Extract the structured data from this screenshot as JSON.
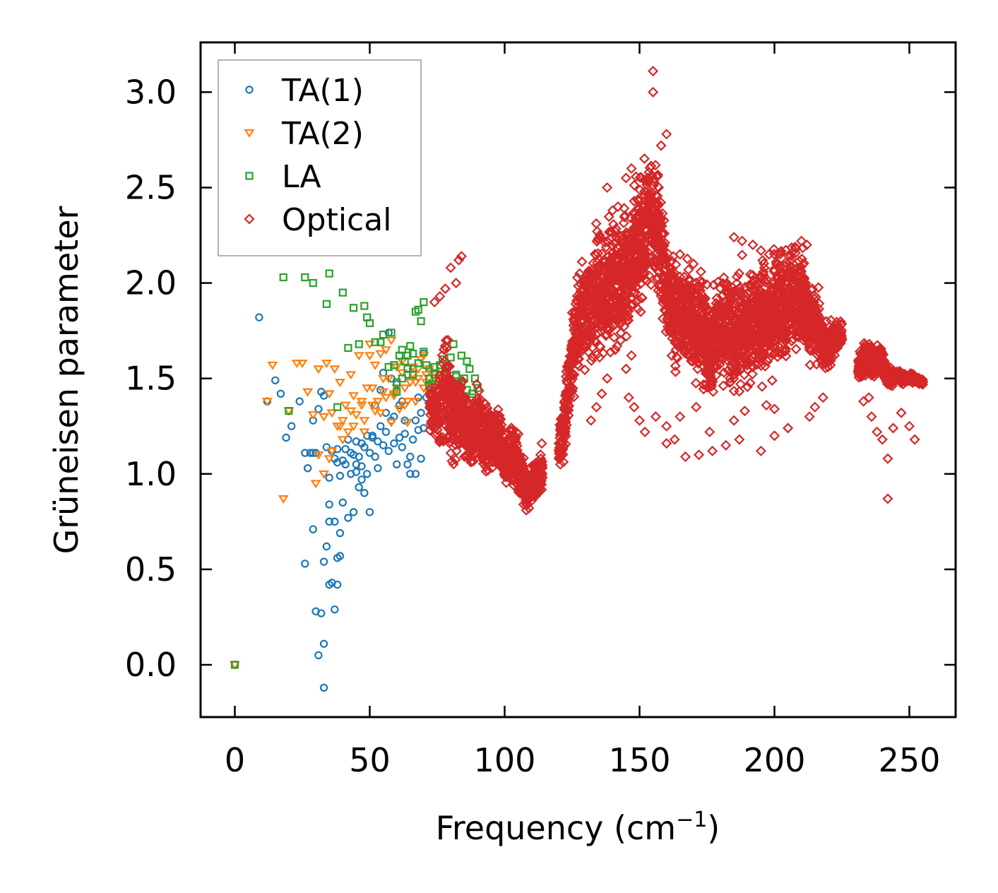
{
  "chart_data": {
    "type": "scatter",
    "title": "",
    "xlabel": "Frequency (cm",
    "xlabel_superscript": "−1",
    "xlabel_suffix": ")",
    "ylabel": "Grüneisen parameter",
    "xlim": [
      -13,
      268
    ],
    "ylim": [
      -0.27,
      3.27
    ],
    "xticks": [
      0,
      50,
      100,
      150,
      200,
      250
    ],
    "xtick_labels": [
      "0",
      "50",
      "100",
      "150",
      "200",
      "250"
    ],
    "yticks": [
      0.0,
      0.5,
      1.0,
      1.5,
      2.0,
      2.5,
      3.0
    ],
    "ytick_labels": [
      "0.0",
      "0.5",
      "1.0",
      "1.5",
      "2.0",
      "2.5",
      "3.0"
    ],
    "grid": false,
    "legend_position": "top-left",
    "series": [
      {
        "name": "TA(1)",
        "color": "#1f77b4",
        "marker": "circle",
        "x": [
          0,
          9,
          12,
          15,
          17,
          19,
          21,
          24,
          26,
          27,
          28,
          29,
          30,
          31,
          32,
          33,
          34,
          35,
          35,
          36,
          37,
          38,
          38,
          39,
          40,
          41,
          42,
          43,
          44,
          45,
          46,
          47,
          48,
          49,
          50,
          51,
          52,
          53,
          54,
          55,
          56,
          57,
          58,
          59,
          60,
          61,
          62,
          63,
          64,
          65,
          66,
          67,
          68,
          69,
          70,
          71,
          72,
          26,
          29,
          33,
          35,
          37,
          39,
          40,
          38,
          34,
          32,
          31,
          33,
          36,
          30,
          38,
          42,
          44,
          46,
          48,
          50,
          47,
          45,
          52,
          54,
          56,
          58,
          60,
          62,
          64,
          66,
          68,
          70,
          72,
          57,
          59,
          61,
          63,
          65,
          67,
          69,
          55,
          53,
          51,
          49,
          47,
          45,
          43,
          41,
          39,
          37,
          35,
          33,
          29
        ],
        "y": [
          0.0,
          1.82,
          1.38,
          1.49,
          1.42,
          1.19,
          1.25,
          1.38,
          1.11,
          1.03,
          1.11,
          1.28,
          1.11,
          1.34,
          1.43,
          1.41,
          1.14,
          0.98,
          0.84,
          1.12,
          1.08,
          1.06,
          1.13,
          0.99,
          1.07,
          1.05,
          1.18,
          1.11,
          1.1,
          1.17,
          1.09,
          1.04,
          1.14,
          1.2,
          1.11,
          1.19,
          1.09,
          1.17,
          1.25,
          1.15,
          1.22,
          1.12,
          1.28,
          1.16,
          1.05,
          1.19,
          1.14,
          1.21,
          1.05,
          1.09,
          1.18,
          1.28,
          1.23,
          1.32,
          1.24,
          1.4,
          1.35,
          0.53,
          0.71,
          0.54,
          0.75,
          0.75,
          0.69,
          0.85,
          0.56,
          0.62,
          0.27,
          0.05,
          0.11,
          0.43,
          0.28,
          0.42,
          0.77,
          0.8,
          0.93,
          0.9,
          0.8,
          0.97,
          1.01,
          1.36,
          1.44,
          1.32,
          1.5,
          1.47,
          1.38,
          1.52,
          1.55,
          1.4,
          1.63,
          1.55,
          1.74,
          1.3,
          1.36,
          1.28,
          1.0,
          1.0,
          1.08,
          1.53,
          1.03,
          1.2,
          1.0,
          1.16,
          1.05,
          1.0,
          1.13,
          0.57,
          0.29,
          0.42,
          -0.12,
          1.11
        ]
      },
      {
        "name": "TA(2)",
        "color": "#ff7f0e",
        "marker": "triangle-down",
        "x": [
          0,
          12,
          14,
          18,
          20,
          23,
          25,
          27,
          29,
          31,
          33,
          34,
          35,
          36,
          37,
          38,
          39,
          40,
          41,
          42,
          43,
          44,
          45,
          46,
          47,
          48,
          49,
          50,
          51,
          52,
          53,
          54,
          55,
          56,
          57,
          58,
          59,
          60,
          61,
          62,
          63,
          64,
          65,
          66,
          67,
          68,
          69,
          70,
          71,
          72,
          73,
          74,
          75,
          76,
          77,
          78,
          30,
          33,
          36,
          40,
          44,
          48,
          52,
          56,
          60,
          64,
          68,
          72,
          76,
          50,
          54,
          58,
          62,
          66,
          70,
          74,
          31,
          35,
          39,
          43,
          47,
          51,
          55,
          59,
          63,
          67,
          71,
          75
        ],
        "y": [
          0.0,
          1.38,
          1.57,
          0.87,
          1.33,
          1.58,
          1.58,
          1.43,
          1.31,
          1.55,
          1.3,
          1.58,
          1.42,
          1.32,
          1.55,
          1.25,
          1.48,
          1.28,
          1.36,
          1.22,
          1.52,
          1.41,
          1.31,
          1.62,
          1.36,
          1.28,
          1.45,
          1.62,
          1.36,
          1.57,
          1.38,
          1.32,
          1.43,
          1.65,
          1.5,
          1.27,
          1.41,
          1.56,
          1.34,
          1.53,
          1.45,
          1.27,
          1.48,
          1.52,
          1.38,
          1.55,
          1.6,
          1.45,
          1.48,
          1.42,
          1.36,
          1.5,
          1.44,
          1.41,
          1.52,
          1.48,
          0.95,
          1.0,
          1.12,
          1.18,
          1.25,
          1.22,
          1.33,
          1.4,
          1.45,
          1.38,
          1.5,
          1.55,
          1.47,
          1.68,
          1.63,
          1.7,
          1.59,
          1.56,
          1.62,
          1.53,
          1.1,
          1.08,
          1.25,
          1.33,
          1.38,
          1.45,
          1.5,
          1.42,
          1.36,
          1.48,
          1.52,
          1.46
        ]
      },
      {
        "name": "LA",
        "color": "#2ca02c",
        "marker": "square",
        "x": [
          0,
          18,
          20,
          26,
          29,
          34,
          35,
          38,
          40,
          42,
          44,
          46,
          48,
          49,
          50,
          52,
          54,
          55,
          57,
          58,
          59,
          60,
          61,
          62,
          63,
          64,
          65,
          66,
          67,
          68,
          69,
          70,
          71,
          72,
          73,
          74,
          75,
          76,
          77,
          78,
          79,
          80,
          81,
          82,
          83,
          84,
          85,
          86,
          87,
          88,
          89,
          90,
          78,
          80,
          82,
          84,
          86,
          88,
          76,
          74,
          72,
          70,
          68,
          66,
          64,
          62,
          60
        ],
        "y": [
          0.0,
          2.03,
          1.33,
          2.03,
          2.0,
          1.89,
          2.05,
          1.35,
          1.95,
          1.66,
          1.87,
          1.68,
          1.88,
          1.82,
          1.79,
          1.69,
          1.69,
          1.73,
          1.56,
          1.74,
          1.57,
          1.43,
          1.62,
          1.65,
          1.59,
          1.55,
          1.67,
          1.63,
          1.85,
          1.86,
          1.8,
          1.9,
          1.57,
          1.5,
          1.47,
          1.52,
          1.43,
          1.57,
          1.6,
          1.5,
          1.42,
          1.61,
          1.68,
          1.52,
          1.47,
          1.62,
          1.5,
          1.44,
          1.55,
          1.4,
          1.5,
          1.45,
          1.55,
          1.44,
          1.51,
          1.48,
          1.59,
          1.42,
          1.5,
          1.56,
          1.46,
          1.64,
          1.58,
          1.52,
          1.62,
          1.5,
          1.48
        ]
      },
      {
        "name": "Optical",
        "color": "#d62728",
        "marker": "diamond",
        "segments": [
          {
            "x": [
              72,
              75,
              78,
              80,
              82,
              84,
              86,
              88,
              90,
              92,
              94,
              96,
              98,
              100,
              102,
              104,
              106,
              108,
              110,
              112,
              114
            ],
            "center": [
              1.35,
              1.3,
              1.45,
              1.35,
              1.3,
              1.32,
              1.25,
              1.2,
              1.3,
              1.15,
              1.2,
              1.15,
              1.18,
              1.05,
              1.1,
              1.08,
              0.98,
              0.92,
              0.95,
              0.98,
              1.05
            ],
            "spread": [
              0.15,
              0.2,
              0.4,
              0.35,
              0.3,
              0.25,
              0.2,
              0.2,
              0.25,
              0.2,
              0.25,
              0.2,
              0.22,
              0.18,
              0.2,
              0.22,
              0.2,
              0.12,
              0.12,
              0.15,
              0.2
            ]
          },
          {
            "x": [
              120,
              122,
              124,
              126,
              128,
              130,
              132,
              134,
              136,
              138,
              140,
              142,
              144,
              146,
              148,
              150,
              152,
              154,
              156,
              158,
              160,
              162,
              164,
              166,
              168,
              170,
              172,
              174,
              176,
              178,
              180,
              182,
              184,
              186,
              188,
              190,
              192,
              194,
              196,
              198,
              200,
              202,
              204,
              206,
              208,
              210,
              212,
              214,
              216,
              218,
              220,
              222,
              225
            ],
            "center": [
              1.1,
              1.25,
              1.5,
              1.7,
              1.8,
              1.9,
              1.85,
              1.95,
              1.9,
              2.0,
              2.05,
              1.95,
              2.1,
              2.0,
              2.15,
              2.2,
              2.25,
              2.35,
              2.3,
              2.2,
              1.95,
              1.9,
              1.85,
              1.8,
              1.85,
              1.75,
              1.8,
              1.7,
              1.65,
              1.7,
              1.75,
              1.8,
              1.75,
              1.7,
              1.8,
              1.75,
              1.8,
              1.75,
              1.85,
              1.8,
              1.85,
              1.9,
              1.85,
              1.95,
              1.9,
              1.95,
              1.85,
              1.8,
              1.75,
              1.7,
              1.65,
              1.7,
              1.75
            ],
            "spread": [
              0.15,
              0.25,
              0.3,
              0.35,
              0.35,
              0.4,
              0.35,
              0.45,
              0.4,
              0.45,
              0.45,
              0.4,
              0.45,
              0.4,
              0.45,
              0.45,
              0.5,
              0.45,
              0.4,
              0.45,
              0.4,
              0.4,
              0.38,
              0.35,
              0.35,
              0.38,
              0.35,
              0.4,
              0.35,
              0.35,
              0.38,
              0.35,
              0.4,
              0.38,
              0.4,
              0.35,
              0.38,
              0.4,
              0.38,
              0.35,
              0.38,
              0.4,
              0.38,
              0.35,
              0.35,
              0.38,
              0.3,
              0.3,
              0.25,
              0.2,
              0.15,
              0.12,
              0.08
            ]
          },
          {
            "x": [
              231,
              233,
              235,
              237,
              239,
              241,
              243,
              245,
              247,
              249,
              251,
              253,
              255
            ],
            "center": [
              1.55,
              1.6,
              1.62,
              1.58,
              1.6,
              1.55,
              1.5,
              1.52,
              1.5,
              1.5,
              1.5,
              1.49,
              1.48
            ],
            "spread": [
              0.1,
              0.12,
              0.12,
              0.1,
              0.1,
              0.08,
              0.06,
              0.05,
              0.04,
              0.03,
              0.03,
              0.02,
              0.02
            ]
          }
        ],
        "x": [
          155,
          155,
          160,
          158,
          153,
          147,
          145,
          138,
          142,
          84,
          83,
          80,
          82,
          78,
          76,
          74,
          108,
          109,
          110,
          111,
          107,
          106,
          140,
          165,
          170,
          185,
          188,
          192,
          195,
          198,
          210,
          212,
          208,
          152,
          160,
          163,
          167,
          172,
          177,
          182,
          187,
          195,
          200,
          205,
          213,
          218,
          215,
          200,
          197,
          148,
          146,
          150,
          156,
          160,
          165,
          171,
          176,
          185,
          189,
          242,
          242,
          244,
          236,
          238,
          240,
          247,
          250,
          252,
          233,
          235,
          138,
          136,
          134,
          132,
          145,
          147,
          143,
          141
        ],
        "y": [
          3.11,
          3.0,
          2.78,
          2.72,
          2.55,
          2.6,
          2.55,
          2.5,
          2.4,
          2.14,
          2.12,
          2.08,
          2.0,
          1.97,
          1.93,
          1.9,
          0.81,
          0.82,
          0.86,
          0.88,
          0.84,
          0.9,
          2.38,
          2.15,
          2.1,
          2.24,
          2.22,
          2.2,
          2.17,
          2.15,
          2.22,
          2.2,
          2.18,
          1.22,
          1.16,
          1.18,
          1.09,
          1.1,
          1.12,
          1.15,
          1.18,
          1.12,
          1.2,
          1.24,
          1.3,
          1.4,
          1.35,
          1.34,
          1.36,
          1.35,
          1.4,
          1.28,
          1.3,
          1.25,
          1.3,
          1.35,
          1.22,
          1.28,
          1.33,
          0.87,
          1.08,
          1.24,
          1.3,
          1.22,
          1.18,
          1.32,
          1.25,
          1.18,
          1.38,
          1.4,
          1.5,
          1.42,
          1.35,
          1.28,
          1.55,
          1.62,
          1.7,
          1.65
        ]
      }
    ]
  }
}
